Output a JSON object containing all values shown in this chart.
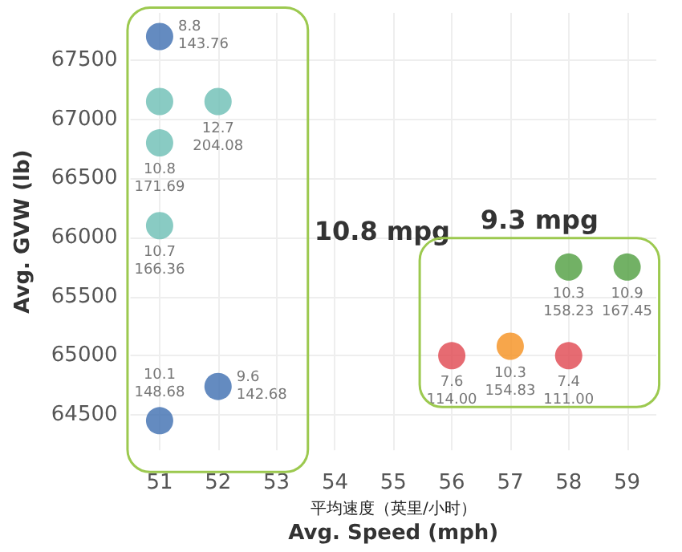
{
  "chart_data": {
    "type": "scatter",
    "xlabel": "平均速度（英里/小时）\nAvg. Speed (mph)",
    "ylabel": "Avg. GVW (lb)",
    "xlim": [
      50.5,
      59.5
    ],
    "xticks": [
      51,
      52,
      53,
      54,
      55,
      56,
      57,
      58,
      59
    ],
    "ylim": [
      64200,
      67900
    ],
    "yticks": [
      64500,
      65000,
      65500,
      66000,
      66500,
      67000,
      67500
    ],
    "grid": true,
    "marker": "circle",
    "annotations": [
      "10.8 mpg",
      "9.3 mpg"
    ],
    "series": [
      {
        "x": [
          51,
          51,
          52,
          51,
          51,
          51,
          52
        ],
        "values": [
          67700,
          67150,
          67150,
          66800,
          66100,
          64450,
          64740
        ],
        "colors": [
          "#3d6eb0",
          "#6bbeb4",
          "#6bbeb4",
          "#6bbeb4",
          "#6bbeb4",
          "#3d6eb0",
          "#3d6eb0"
        ],
        "value_labels": [
          "8.8\n143.76",
          null,
          "12.7\n204.08",
          "10.8\n171.69",
          "10.7\n166.36",
          "10.1\n148.68",
          "9.6\n142.68"
        ]
      },
      {
        "x": [
          56,
          57,
          58,
          58,
          59
        ],
        "values": [
          65000,
          65080,
          65000,
          65750,
          65750
        ],
        "colors": [
          "#e0464f",
          "#f5901e",
          "#e0464f",
          "#4f9e3f",
          "#4f9e3f"
        ],
        "value_labels": [
          "7.6\n114.00",
          "10.3\n154.83",
          "7.4\n111.00",
          "10.3\n158.23",
          "10.9\n167.45"
        ]
      }
    ]
  }
}
